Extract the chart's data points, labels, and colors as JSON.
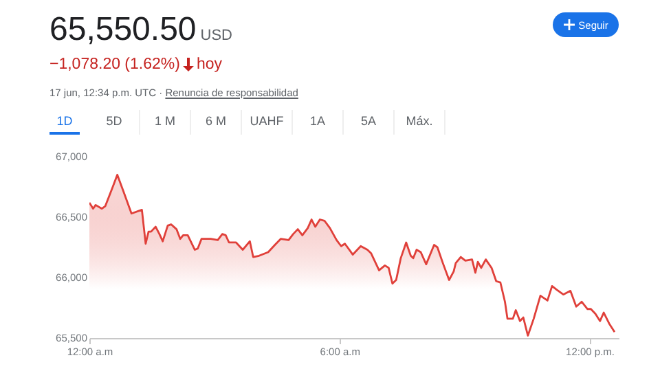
{
  "chart_data": {
    "type": "area",
    "title": "65,550.50",
    "subtitle": "USD",
    "annotations": [
      "−1,078.20 (1.62%)",
      "hoy",
      "17 jun, 12:34 p.m. UTC · ",
      "Renuncia de responsabilidad",
      "Seguir",
      "1D",
      "5D",
      "1 M",
      "6 M",
      "UAHF",
      "1A",
      "5A",
      "Máx."
    ],
    "x": [
      0,
      0.09,
      0.15,
      0.3,
      0.38,
      0.55,
      0.67,
      0.82,
      1.01,
      1.26,
      1.35,
      1.42,
      1.48,
      1.59,
      1.68,
      1.76,
      1.88,
      1.96,
      2.09,
      2.18,
      2.25,
      2.36,
      2.53,
      2.6,
      2.69,
      2.91,
      3.08,
      3.19,
      3.27,
      3.35,
      3.52,
      3.68,
      3.85,
      3.93,
      4.07,
      4.29,
      4.45,
      4.59,
      4.78,
      4.89,
      5,
      5.11,
      5.24,
      5.33,
      5.42,
      5.53,
      5.64,
      5.77,
      5.93,
      6.04,
      6.13,
      6.32,
      6.51,
      6.67,
      6.76,
      6.95,
      7.09,
      7.18,
      7.27,
      7.36,
      7.47,
      7.6,
      7.71,
      7.77,
      7.85,
      7.95,
      8.08,
      8.27,
      8.35,
      8.48,
      8.63,
      8.74,
      8.79,
      8.91,
      9.02,
      9.18,
      9.26,
      9.32,
      9.4,
      9.51,
      9.65,
      9.76,
      9.86,
      9.97,
      10.03,
      10.16,
      10.23,
      10.33,
      10.41,
      10.52,
      10.66,
      10.82,
      10.99,
      11.1,
      11.21,
      11.37,
      11.54,
      11.68,
      11.81,
      11.95,
      12.03,
      12.14,
      12.25,
      12.34,
      12.47,
      12.6
    ],
    "series": [
      {
        "color": "#e0403a",
        "values": [
          66620,
          66570,
          66600,
          66570,
          66590,
          66740,
          66850,
          66710,
          66530,
          66560,
          66280,
          66380,
          66380,
          66420,
          66360,
          66300,
          66430,
          66440,
          66400,
          66320,
          66350,
          66350,
          66230,
          66240,
          66320,
          66320,
          66310,
          66360,
          66350,
          66290,
          66290,
          66230,
          66300,
          66170,
          66180,
          66210,
          66270,
          66320,
          66310,
          66360,
          66400,
          66350,
          66410,
          66480,
          66420,
          66480,
          66470,
          66410,
          66310,
          66260,
          66280,
          66190,
          66260,
          66230,
          66200,
          66060,
          66100,
          66080,
          65950,
          65980,
          66160,
          66290,
          66180,
          66160,
          66230,
          66210,
          66110,
          66270,
          66250,
          66120,
          65980,
          66050,
          66120,
          66170,
          66140,
          66150,
          66040,
          66130,
          66080,
          66150,
          66080,
          65970,
          65960,
          65800,
          65660,
          65660,
          65730,
          65640,
          65670,
          65520,
          65660,
          65850,
          65810,
          65930,
          65900,
          65860,
          65890,
          65760,
          65800,
          65740,
          65740,
          65700,
          65640,
          65710,
          65620,
          65550
        ]
      }
    ],
    "xlim": [
      0,
      12.7
    ],
    "xticks": [
      {
        "value": 0,
        "label": "12:00 a.m"
      },
      {
        "value": 6,
        "label": "6:00 a.m"
      },
      {
        "value": 12,
        "label": "12:00 p.m."
      }
    ],
    "ylim": [
      65500,
      67000
    ],
    "yticks": [
      {
        "value": 65500,
        "label": "65,500"
      },
      {
        "value": 66000,
        "label": "66,000"
      },
      {
        "value": 66500,
        "label": "66,500"
      },
      {
        "value": 67000,
        "label": "67,000"
      }
    ],
    "grid": false
  }
}
